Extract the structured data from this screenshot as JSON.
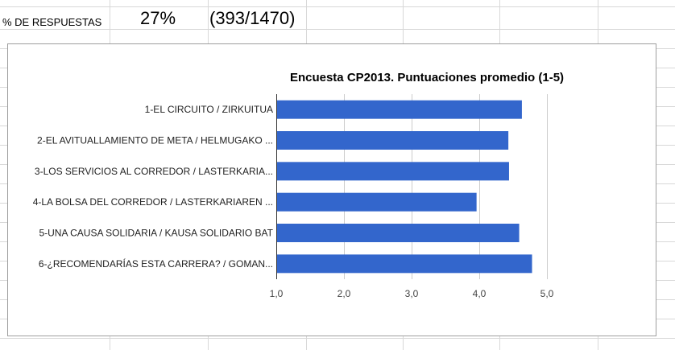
{
  "sheet": {
    "label": "% DE RESPUESTAS",
    "percent": "27%",
    "ratio": "(393/1470)"
  },
  "chart_data": {
    "type": "bar",
    "orientation": "horizontal",
    "title": "Encuesta CP2013. Puntuaciones promedio (1-5)",
    "categories": [
      "1-EL CIRCUITO / ZIRKUITUA",
      "2-EL AVITUALLAMIENTO DE META / HELMUGAKO ...",
      "3-LOS SERVICIOS AL CORREDOR / LASTERKARIA...",
      "4-LA BOLSA DEL CORREDOR / LASTERKARIAREN ...",
      "5-UNA CAUSA SOLIDARIA / KAUSA SOLIDARIO BAT",
      "6-¿RECOMENDARÍAS ESTA CARRERA? / GOMAN..."
    ],
    "values": [
      4.63,
      4.43,
      4.44,
      3.96,
      4.59,
      4.78
    ],
    "xlim": [
      1.0,
      5.0
    ],
    "ticks": [
      1.0,
      2.0,
      3.0,
      4.0,
      5.0
    ],
    "tick_labels": [
      "1,0",
      "2,0",
      "3,0",
      "4,0",
      "5,0"
    ],
    "bar_color": "#3366cc",
    "grid": true,
    "legend": "none"
  }
}
